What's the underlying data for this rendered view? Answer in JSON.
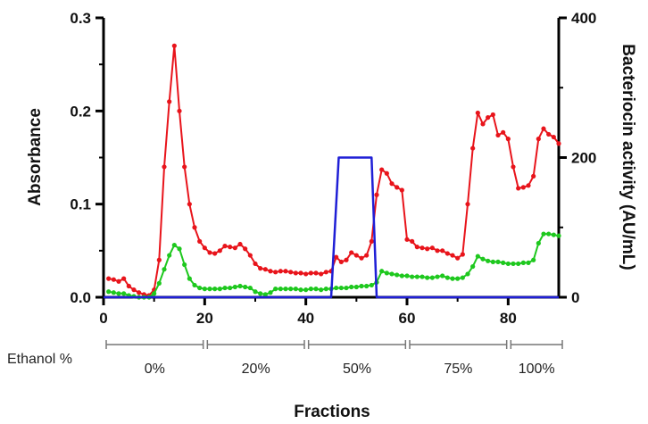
{
  "chart_data": {
    "type": "line",
    "xlabel": "Fractions",
    "ylabel_left": "Absorbance",
    "ylabel_right": "Bacteriocin activity (AU/mL)",
    "xlim": [
      0,
      90
    ],
    "ylim_left": [
      0,
      0.3
    ],
    "ylim_right": [
      0,
      400
    ],
    "x_ticks": [
      "0",
      "20",
      "40",
      "60",
      "80"
    ],
    "y_left_ticks": [
      "0.0",
      "0.1",
      "0.2",
      "0.3"
    ],
    "y_right_ticks": [
      "0",
      "200",
      "400"
    ],
    "grid": false,
    "ethanol": {
      "label": "Ethanol %",
      "segments": [
        {
          "label": "0%",
          "start": 0,
          "end": 19
        },
        {
          "label": "20%",
          "start": 20,
          "end": 39
        },
        {
          "label": "50%",
          "start": 40,
          "end": 59
        },
        {
          "label": "75%",
          "start": 60,
          "end": 79
        },
        {
          "label": "100%",
          "start": 80,
          "end": 90
        }
      ]
    },
    "series": [
      {
        "color": "#e8141b",
        "axis": "left",
        "marker": true,
        "x": [
          1,
          2,
          3,
          4,
          5,
          6,
          7,
          8,
          9,
          10,
          11,
          12,
          13,
          14,
          15,
          16,
          17,
          18,
          19,
          20,
          21,
          22,
          23,
          24,
          25,
          26,
          27,
          28,
          29,
          30,
          31,
          32,
          33,
          34,
          35,
          36,
          37,
          38,
          39,
          40,
          41,
          42,
          43,
          44,
          45,
          46,
          47,
          48,
          49,
          50,
          51,
          52,
          53,
          54,
          55,
          56,
          57,
          58,
          59,
          60,
          61,
          62,
          63,
          64,
          65,
          66,
          67,
          68,
          69,
          70,
          71,
          72,
          73,
          74,
          75,
          76,
          77,
          78,
          79,
          80,
          81,
          82,
          83,
          84,
          85,
          86,
          87,
          88,
          89,
          90
        ],
        "y": [
          0.02,
          0.019,
          0.017,
          0.02,
          0.012,
          0.008,
          0.005,
          0.003,
          0.002,
          0.008,
          0.04,
          0.14,
          0.21,
          0.27,
          0.2,
          0.14,
          0.1,
          0.075,
          0.06,
          0.053,
          0.048,
          0.047,
          0.05,
          0.055,
          0.054,
          0.053,
          0.057,
          0.052,
          0.045,
          0.036,
          0.031,
          0.03,
          0.028,
          0.027,
          0.028,
          0.028,
          0.027,
          0.026,
          0.026,
          0.025,
          0.026,
          0.026,
          0.025,
          0.027,
          0.028,
          0.043,
          0.038,
          0.04,
          0.048,
          0.045,
          0.042,
          0.045,
          0.06,
          0.11,
          0.137,
          0.133,
          0.122,
          0.118,
          0.115,
          0.062,
          0.06,
          0.054,
          0.053,
          0.052,
          0.053,
          0.05,
          0.05,
          0.047,
          0.045,
          0.042,
          0.046,
          0.1,
          0.16,
          0.198,
          0.186,
          0.193,
          0.196,
          0.174,
          0.177,
          0.17,
          0.14,
          0.117,
          0.118,
          0.12,
          0.13,
          0.17,
          0.181,
          0.175,
          0.172,
          0.165
        ]
      },
      {
        "color": "#1ec81e",
        "axis": "left",
        "marker": true,
        "x": [
          1,
          2,
          3,
          4,
          5,
          6,
          7,
          8,
          9,
          10,
          11,
          12,
          13,
          14,
          15,
          16,
          17,
          18,
          19,
          20,
          21,
          22,
          23,
          24,
          25,
          26,
          27,
          28,
          29,
          30,
          31,
          32,
          33,
          34,
          35,
          36,
          37,
          38,
          39,
          40,
          41,
          42,
          43,
          44,
          45,
          46,
          47,
          48,
          49,
          50,
          51,
          52,
          53,
          54,
          55,
          56,
          57,
          58,
          59,
          60,
          61,
          62,
          63,
          64,
          65,
          66,
          67,
          68,
          69,
          70,
          71,
          72,
          73,
          74,
          75,
          76,
          77,
          78,
          79,
          80,
          81,
          82,
          83,
          84,
          85,
          86,
          87,
          88,
          89,
          90
        ],
        "y": [
          0.006,
          0.005,
          0.004,
          0.004,
          0.002,
          0.001,
          0.0,
          0.0,
          0.0,
          0.004,
          0.015,
          0.03,
          0.045,
          0.056,
          0.052,
          0.035,
          0.02,
          0.013,
          0.01,
          0.009,
          0.009,
          0.009,
          0.009,
          0.01,
          0.01,
          0.011,
          0.012,
          0.011,
          0.01,
          0.006,
          0.004,
          0.003,
          0.005,
          0.009,
          0.009,
          0.009,
          0.009,
          0.009,
          0.008,
          0.008,
          0.009,
          0.009,
          0.008,
          0.009,
          0.009,
          0.01,
          0.01,
          0.01,
          0.011,
          0.011,
          0.012,
          0.012,
          0.013,
          0.016,
          0.028,
          0.026,
          0.025,
          0.024,
          0.023,
          0.023,
          0.022,
          0.022,
          0.022,
          0.021,
          0.021,
          0.022,
          0.023,
          0.021,
          0.02,
          0.02,
          0.021,
          0.025,
          0.033,
          0.044,
          0.041,
          0.039,
          0.038,
          0.038,
          0.037,
          0.036,
          0.036,
          0.036,
          0.037,
          0.037,
          0.04,
          0.058,
          0.068,
          0.068,
          0.067,
          0.066
        ]
      },
      {
        "color": "#1f1fd6",
        "axis": "right",
        "marker": false,
        "x": [
          0,
          45,
          46.5,
          53,
          54,
          90
        ],
        "y": [
          0,
          0,
          200,
          200,
          0,
          0
        ]
      }
    ]
  }
}
